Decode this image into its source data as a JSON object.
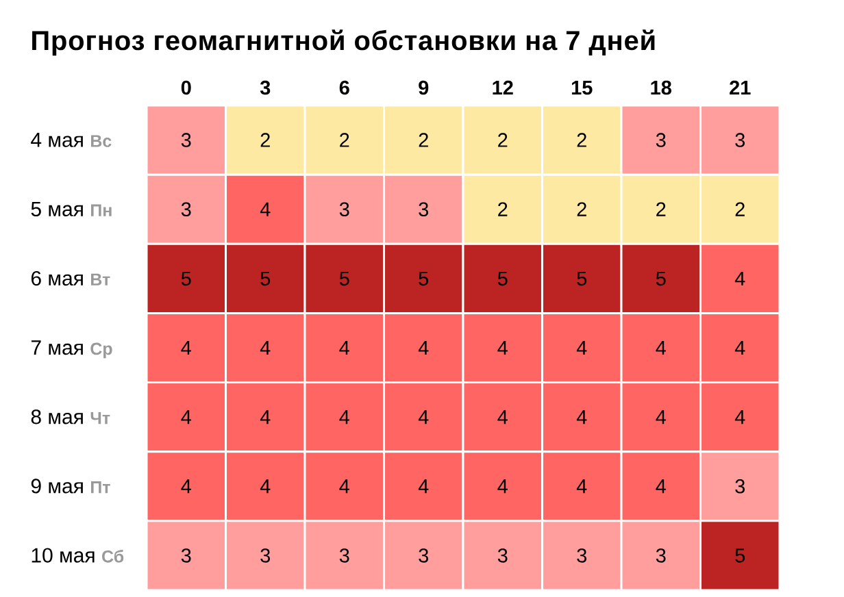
{
  "chart_data": {
    "type": "heatmap",
    "title": "Прогноз геомагнитной обстановки на 7 дней",
    "categories": [
      "0",
      "3",
      "6",
      "9",
      "12",
      "15",
      "18",
      "21"
    ],
    "y_categories": [
      "4 мая",
      "5 мая",
      "6 мая",
      "7 мая",
      "8 мая",
      "9 мая",
      "10 мая"
    ],
    "y2_categories": [
      "Вс",
      "Пн",
      "Вт",
      "Ср",
      "Чт",
      "Пт",
      "Сб"
    ],
    "cells": [
      [
        3,
        2,
        2,
        2,
        2,
        2,
        3,
        3
      ],
      [
        3,
        4,
        3,
        3,
        2,
        2,
        2,
        2
      ],
      [
        5,
        5,
        5,
        5,
        5,
        5,
        5,
        4
      ],
      [
        4,
        4,
        4,
        4,
        4,
        4,
        4,
        4
      ],
      [
        4,
        4,
        4,
        4,
        4,
        4,
        4,
        4
      ],
      [
        4,
        4,
        4,
        4,
        4,
        4,
        4,
        3
      ],
      [
        3,
        3,
        3,
        3,
        3,
        3,
        3,
        5
      ]
    ],
    "colors": [
      [
        "#ff9e9c",
        "#fee9a2",
        "#fee9a2",
        "#fee9a2",
        "#fee9a2",
        "#fee9a2",
        "#ff9e9c",
        "#ff9e9c"
      ],
      [
        "#ff9e9c",
        "#ff6663",
        "#ff9e9c",
        "#ff9e9c",
        "#fee9a2",
        "#fee9a2",
        "#fee9a2",
        "#fee9a2"
      ],
      [
        "#bc2323",
        "#bc2323",
        "#bc2323",
        "#bc2323",
        "#bc2323",
        "#bc2323",
        "#bc2323",
        "#ff6663"
      ],
      [
        "#ff6663",
        "#ff6663",
        "#ff6663",
        "#ff6663",
        "#ff6663",
        "#ff6663",
        "#ff6663",
        "#ff6663"
      ],
      [
        "#ff6663",
        "#ff6663",
        "#ff6663",
        "#ff6663",
        "#ff6663",
        "#ff6663",
        "#ff6663",
        "#ff6663"
      ],
      [
        "#ff6663",
        "#ff6663",
        "#ff6663",
        "#ff6663",
        "#ff6663",
        "#ff6663",
        "#ff6663",
        "#ff9e9c"
      ],
      [
        "#ff9e9c",
        "#ff9e9c",
        "#ff9e9c",
        "#ff9e9c",
        "#ff9e9c",
        "#ff9e9c",
        "#ff9e9c",
        "#bc2323"
      ]
    ],
    "data_labels": true
  }
}
